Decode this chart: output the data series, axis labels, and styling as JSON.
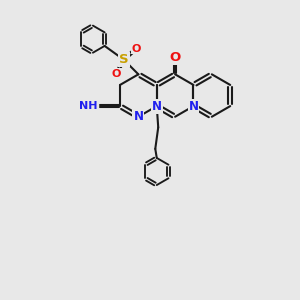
{
  "bg_color": "#e8e8e8",
  "bond_color": "#1a1a1a",
  "bond_width": 1.5,
  "N_color": "#2020ee",
  "O_color": "#ee1111",
  "S_color": "#c8a000",
  "font_size": 8.5,
  "fig_size": [
    3.0,
    3.0
  ],
  "dpi": 100,
  "xlim": [
    0,
    10
  ],
  "ylim": [
    0,
    10
  ]
}
